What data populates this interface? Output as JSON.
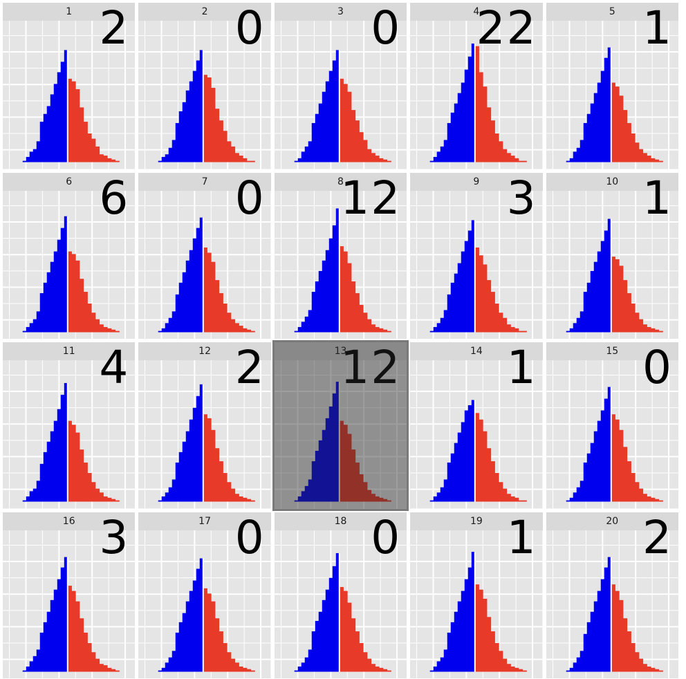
{
  "colors": {
    "left": "#0000ee",
    "right": "#e83a28",
    "panel_bg": "#e5e5e5",
    "grid": "#ffffff",
    "strip": "#d9d9d9"
  },
  "selected_panel": 13,
  "chart_data": [
    {
      "type": "bar",
      "panel": "1",
      "count": "2",
      "left": [
        1,
        4,
        8,
        10,
        16,
        31,
        37,
        43,
        52,
        60,
        69,
        77,
        86
      ],
      "right": [
        64,
        62,
        56,
        42,
        31,
        22,
        18,
        12,
        6,
        5,
        3,
        2,
        1
      ]
    },
    {
      "type": "bar",
      "panel": "2",
      "count": "0",
      "left": [
        1,
        4,
        6,
        11,
        17,
        30,
        39,
        46,
        55,
        62,
        70,
        78,
        86
      ],
      "right": [
        67,
        65,
        57,
        41,
        32,
        24,
        16,
        12,
        7,
        5,
        3,
        1,
        1
      ]
    },
    {
      "type": "bar",
      "panel": "3",
      "count": "0",
      "left": [
        1,
        3,
        8,
        12,
        16,
        30,
        37,
        45,
        54,
        62,
        70,
        78,
        86
      ],
      "right": [
        64,
        60,
        54,
        40,
        32,
        23,
        17,
        10,
        7,
        5,
        3,
        2,
        1
      ]
    },
    {
      "type": "bar",
      "panel": "4",
      "count": "22",
      "left": [
        1,
        4,
        8,
        12,
        17,
        30,
        38,
        45,
        53,
        61,
        71,
        81,
        91
      ],
      "right": [
        89,
        69,
        58,
        42,
        32,
        22,
        16,
        10,
        7,
        5,
        3,
        1,
        1
      ]
    },
    {
      "type": "bar",
      "panel": "5",
      "count": "1",
      "left": [
        1,
        3,
        8,
        11,
        17,
        30,
        37,
        45,
        53,
        61,
        70,
        80,
        88
      ],
      "right": [
        61,
        58,
        51,
        40,
        30,
        22,
        15,
        10,
        7,
        5,
        3,
        2,
        1
      ]
    },
    {
      "type": "bar",
      "panel": "6",
      "count": "6",
      "left": [
        1,
        4,
        7,
        10,
        16,
        30,
        38,
        46,
        54,
        62,
        71,
        80,
        89
      ],
      "right": [
        62,
        60,
        55,
        41,
        31,
        22,
        15,
        10,
        6,
        4,
        3,
        2,
        1
      ]
    },
    {
      "type": "bar",
      "panel": "7",
      "count": "0",
      "left": [
        1,
        3,
        7,
        11,
        16,
        29,
        38,
        46,
        55,
        63,
        72,
        80,
        88
      ],
      "right": [
        65,
        61,
        54,
        40,
        30,
        22,
        15,
        10,
        7,
        5,
        3,
        2,
        1
      ]
    },
    {
      "type": "bar",
      "panel": "8",
      "count": "12",
      "left": [
        1,
        4,
        8,
        12,
        17,
        31,
        39,
        47,
        55,
        63,
        72,
        82,
        95
      ],
      "right": [
        66,
        62,
        53,
        39,
        30,
        21,
        15,
        10,
        6,
        4,
        3,
        2,
        1
      ]
    },
    {
      "type": "bar",
      "panel": "9",
      "count": "3",
      "left": [
        1,
        4,
        7,
        11,
        17,
        29,
        38,
        45,
        53,
        62,
        70,
        78,
        86
      ],
      "right": [
        65,
        59,
        52,
        40,
        31,
        22,
        15,
        11,
        6,
        4,
        3,
        1,
        1
      ]
    },
    {
      "type": "bar",
      "panel": "10",
      "count": "1",
      "left": [
        1,
        3,
        7,
        11,
        16,
        31,
        38,
        47,
        54,
        62,
        70,
        78,
        87
      ],
      "right": [
        58,
        56,
        51,
        40,
        30,
        22,
        15,
        10,
        6,
        4,
        3,
        2,
        1
      ]
    },
    {
      "type": "bar",
      "panel": "11",
      "count": "4",
      "left": [
        1,
        4,
        8,
        10,
        16,
        29,
        38,
        46,
        54,
        62,
        71,
        82,
        91
      ],
      "right": [
        62,
        59,
        53,
        40,
        30,
        22,
        15,
        10,
        7,
        4,
        3,
        2,
        1
      ]
    },
    {
      "type": "bar",
      "panel": "12",
      "count": "2",
      "left": [
        1,
        4,
        7,
        11,
        17,
        30,
        38,
        46,
        54,
        63,
        72,
        81,
        90
      ],
      "right": [
        67,
        64,
        55,
        41,
        31,
        22,
        15,
        10,
        6,
        4,
        3,
        2,
        1
      ]
    },
    {
      "type": "bar",
      "panel": "13",
      "count": "12",
      "left": [
        1,
        4,
        8,
        12,
        17,
        31,
        39,
        47,
        55,
        64,
        73,
        83,
        92
      ],
      "right": [
        62,
        59,
        52,
        40,
        30,
        21,
        15,
        9,
        6,
        4,
        3,
        2,
        1
      ]
    },
    {
      "type": "bar",
      "panel": "14",
      "count": "1",
      "left": [
        1,
        4,
        7,
        11,
        17,
        30,
        37,
        45,
        53,
        61,
        70,
        74,
        78
      ],
      "right": [
        68,
        63,
        54,
        41,
        31,
        22,
        15,
        10,
        6,
        4,
        3,
        1,
        1
      ]
    },
    {
      "type": "bar",
      "panel": "15",
      "count": "0",
      "left": [
        1,
        3,
        7,
        11,
        16,
        30,
        37,
        45,
        54,
        62,
        70,
        79,
        88
      ],
      "right": [
        67,
        63,
        55,
        42,
        31,
        22,
        15,
        10,
        6,
        4,
        3,
        2,
        1
      ]
    },
    {
      "type": "bar",
      "panel": "16",
      "count": "3",
      "left": [
        1,
        4,
        8,
        12,
        17,
        30,
        38,
        46,
        55,
        63,
        71,
        80,
        88
      ],
      "right": [
        66,
        62,
        54,
        41,
        30,
        22,
        15,
        10,
        6,
        5,
        3,
        2,
        1
      ]
    },
    {
      "type": "bar",
      "panel": "17",
      "count": "0",
      "left": [
        1,
        3,
        7,
        11,
        16,
        30,
        38,
        45,
        54,
        62,
        70,
        79,
        87
      ],
      "right": [
        64,
        60,
        54,
        41,
        31,
        22,
        15,
        10,
        7,
        4,
        3,
        2,
        1
      ]
    },
    {
      "type": "bar",
      "panel": "18",
      "count": "0",
      "left": [
        1,
        4,
        7,
        11,
        17,
        31,
        39,
        46,
        55,
        63,
        72,
        81,
        91
      ],
      "right": [
        65,
        62,
        53,
        41,
        31,
        22,
        15,
        10,
        6,
        4,
        3,
        2,
        1
      ]
    },
    {
      "type": "bar",
      "panel": "19",
      "count": "1",
      "left": [
        1,
        4,
        8,
        11,
        17,
        30,
        38,
        46,
        54,
        62,
        71,
        80,
        92
      ],
      "right": [
        67,
        63,
        56,
        42,
        31,
        22,
        16,
        10,
        6,
        4,
        3,
        2,
        1
      ]
    },
    {
      "type": "bar",
      "panel": "20",
      "count": "2",
      "left": [
        1,
        3,
        7,
        11,
        16,
        29,
        38,
        46,
        54,
        62,
        71,
        80,
        88
      ],
      "right": [
        67,
        62,
        55,
        41,
        31,
        22,
        15,
        10,
        6,
        4,
        3,
        2,
        1
      ]
    }
  ]
}
